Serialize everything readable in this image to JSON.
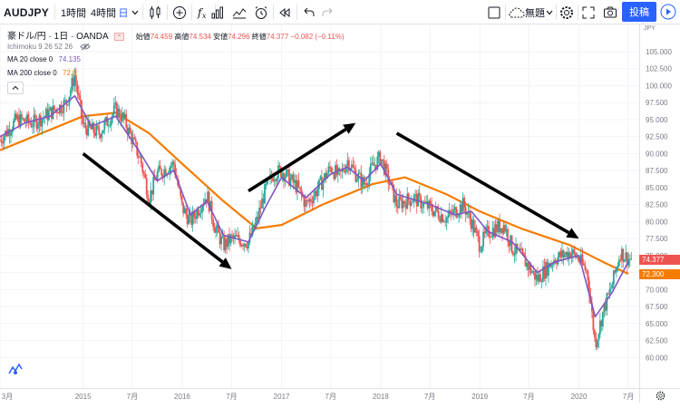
{
  "toolbar": {
    "symbol": "AUDJPY",
    "interval_1h": "1時間",
    "interval_4h": "4時間",
    "interval_current": "日",
    "icons": [
      "chart-style-icon",
      "compare-add-icon",
      "indicator-icon",
      "bar-chart-icon",
      "templates-icon",
      "alert-icon",
      "replay-icon",
      "undo-icon",
      "redo-icon",
      "layout-icon",
      "cloud-save-icon",
      "settings-icon",
      "fullscreen-icon",
      "camera-icon",
      "play-icon"
    ],
    "save_label": "無題",
    "publish_label": "投稿"
  },
  "legend": {
    "title": "豪ドル/円 · 1日 · OANDA",
    "ohlc": {
      "open_label": "始値",
      "open": "74.459",
      "high_label": "高値",
      "high": "74.534",
      "low_label": "安値",
      "low": "74.296",
      "close_label": "終値",
      "close": "74.377",
      "change": "−0.082 (−0.11%)"
    },
    "ichimoku": "Ichimoku 9 26 52 26",
    "ma20_label": "MA 20 close 0",
    "ma20_value": "74.135",
    "ma200_label": "MA 200 close 0",
    "ma200_value": "72.3"
  },
  "colors": {
    "up": "#26a69a",
    "down": "#ef5350",
    "ma20": "#7e57c2",
    "ma200": "#f57c00",
    "arrows": "#000000",
    "accent": "#2962ff",
    "grid": "#f0f3fa",
    "text": "#131722",
    "axis_text": "#787b86"
  },
  "axis_currency": "JPY",
  "chart_data": {
    "type": "candlestick",
    "symbol": "AUDJPY",
    "ylim": [
      55.5,
      109
    ],
    "x_ticks": [
      "3月",
      "2015",
      "7月",
      "2016",
      "7月",
      "2017",
      "7月",
      "2018",
      "7月",
      "2019",
      "7月",
      "2020",
      "7月"
    ],
    "y_ticks": [
      60,
      62.5,
      65,
      67.5,
      70,
      72.5,
      75,
      77.5,
      80,
      82.5,
      85,
      87.5,
      90,
      92.5,
      95,
      97.5,
      100,
      102.5,
      105
    ],
    "price_path": [
      {
        "date": "2014-03",
        "value": 92.0
      },
      {
        "date": "2014-05",
        "value": 95.0
      },
      {
        "date": "2014-07",
        "value": 94.5
      },
      {
        "date": "2014-09",
        "value": 96.0
      },
      {
        "date": "2014-11",
        "value": 97.5
      },
      {
        "date": "2014-12",
        "value": 101.5
      },
      {
        "date": "2015-01",
        "value": 94.0
      },
      {
        "date": "2015-03",
        "value": 93.0
      },
      {
        "date": "2015-05",
        "value": 96.5
      },
      {
        "date": "2015-06",
        "value": 95.0
      },
      {
        "date": "2015-08",
        "value": 89.0
      },
      {
        "date": "2015-09",
        "value": 83.5
      },
      {
        "date": "2015-10",
        "value": 87.0
      },
      {
        "date": "2015-12",
        "value": 88.5
      },
      {
        "date": "2016-01",
        "value": 82.0
      },
      {
        "date": "2016-02",
        "value": 80.0
      },
      {
        "date": "2016-04",
        "value": 84.0
      },
      {
        "date": "2016-05",
        "value": 79.0
      },
      {
        "date": "2016-06",
        "value": 76.5
      },
      {
        "date": "2016-07",
        "value": 77.5
      },
      {
        "date": "2016-09",
        "value": 77.0
      },
      {
        "date": "2016-10",
        "value": 80.0
      },
      {
        "date": "2016-11",
        "value": 84.5
      },
      {
        "date": "2016-12",
        "value": 87.0
      },
      {
        "date": "2017-01",
        "value": 87.5
      },
      {
        "date": "2017-03",
        "value": 85.0
      },
      {
        "date": "2017-04",
        "value": 82.5
      },
      {
        "date": "2017-05",
        "value": 84.0
      },
      {
        "date": "2017-07",
        "value": 88.0
      },
      {
        "date": "2017-08",
        "value": 86.5
      },
      {
        "date": "2017-09",
        "value": 89.0
      },
      {
        "date": "2017-10",
        "value": 87.0
      },
      {
        "date": "2017-11",
        "value": 85.5
      },
      {
        "date": "2017-12",
        "value": 88.0
      },
      {
        "date": "2018-01",
        "value": 89.5
      },
      {
        "date": "2018-03",
        "value": 82.5
      },
      {
        "date": "2018-05",
        "value": 83.5
      },
      {
        "date": "2018-07",
        "value": 82.0
      },
      {
        "date": "2018-09",
        "value": 80.5
      },
      {
        "date": "2018-11",
        "value": 82.5
      },
      {
        "date": "2018-12",
        "value": 80.0
      },
      {
        "date": "2019-01",
        "value": 76.5
      },
      {
        "date": "2019-02",
        "value": 78.5
      },
      {
        "date": "2019-04",
        "value": 79.5
      },
      {
        "date": "2019-05",
        "value": 76.0
      },
      {
        "date": "2019-06",
        "value": 75.0
      },
      {
        "date": "2019-08",
        "value": 71.5
      },
      {
        "date": "2019-09",
        "value": 73.0
      },
      {
        "date": "2019-10",
        "value": 74.5
      },
      {
        "date": "2019-12",
        "value": 75.5
      },
      {
        "date": "2020-01",
        "value": 74.5
      },
      {
        "date": "2020-02",
        "value": 72.5
      },
      {
        "date": "2020-03",
        "value": 62.0
      },
      {
        "date": "2020-04",
        "value": 67.0
      },
      {
        "date": "2020-05",
        "value": 70.5
      },
      {
        "date": "2020-06",
        "value": 75.5
      },
      {
        "date": "2020-07",
        "value": 74.5
      }
    ],
    "ma20_path": [
      {
        "date": "2014-03",
        "value": 92.5
      },
      {
        "date": "2014-06",
        "value": 94.5
      },
      {
        "date": "2014-09",
        "value": 95.5
      },
      {
        "date": "2014-12",
        "value": 98.5
      },
      {
        "date": "2015-02",
        "value": 94.0
      },
      {
        "date": "2015-05",
        "value": 95.5
      },
      {
        "date": "2015-08",
        "value": 90.0
      },
      {
        "date": "2015-10",
        "value": 86.0
      },
      {
        "date": "2015-12",
        "value": 87.5
      },
      {
        "date": "2016-02",
        "value": 81.0
      },
      {
        "date": "2016-04",
        "value": 83.0
      },
      {
        "date": "2016-06",
        "value": 78.0
      },
      {
        "date": "2016-09",
        "value": 77.0
      },
      {
        "date": "2016-11",
        "value": 82.0
      },
      {
        "date": "2017-01",
        "value": 86.5
      },
      {
        "date": "2017-04",
        "value": 83.5
      },
      {
        "date": "2017-07",
        "value": 87.0
      },
      {
        "date": "2017-09",
        "value": 88.0
      },
      {
        "date": "2017-11",
        "value": 86.0
      },
      {
        "date": "2018-01",
        "value": 88.5
      },
      {
        "date": "2018-03",
        "value": 84.0
      },
      {
        "date": "2018-07",
        "value": 82.5
      },
      {
        "date": "2018-10",
        "value": 81.0
      },
      {
        "date": "2018-12",
        "value": 81.5
      },
      {
        "date": "2019-02",
        "value": 78.5
      },
      {
        "date": "2019-05",
        "value": 77.0
      },
      {
        "date": "2019-08",
        "value": 72.5
      },
      {
        "date": "2019-10",
        "value": 74.0
      },
      {
        "date": "2020-01",
        "value": 75.0
      },
      {
        "date": "2020-03",
        "value": 66.0
      },
      {
        "date": "2020-05",
        "value": 69.5
      },
      {
        "date": "2020-07",
        "value": 74.1
      }
    ],
    "ma200_path": [
      {
        "date": "2014-03",
        "value": 90.5
      },
      {
        "date": "2014-09",
        "value": 93.5
      },
      {
        "date": "2015-01",
        "value": 95.5
      },
      {
        "date": "2015-05",
        "value": 96.0
      },
      {
        "date": "2015-09",
        "value": 93.0
      },
      {
        "date": "2016-01",
        "value": 88.5
      },
      {
        "date": "2016-06",
        "value": 83.0
      },
      {
        "date": "2016-10",
        "value": 79.0
      },
      {
        "date": "2017-01",
        "value": 79.5
      },
      {
        "date": "2017-06",
        "value": 82.5
      },
      {
        "date": "2017-12",
        "value": 85.5
      },
      {
        "date": "2018-04",
        "value": 86.5
      },
      {
        "date": "2018-09",
        "value": 84.0
      },
      {
        "date": "2019-01",
        "value": 81.5
      },
      {
        "date": "2019-06",
        "value": 79.0
      },
      {
        "date": "2019-12",
        "value": 76.5
      },
      {
        "date": "2020-04",
        "value": 74.0
      },
      {
        "date": "2020-07",
        "value": 72.3
      }
    ],
    "annotations": [
      {
        "type": "arrow",
        "from": {
          "date": "2015-01",
          "value": 90
        },
        "to": {
          "date": "2016-07",
          "value": 73
        }
      },
      {
        "type": "arrow",
        "from": {
          "date": "2016-09",
          "value": 84.5
        },
        "to": {
          "date": "2017-10",
          "value": 94.5
        }
      },
      {
        "type": "arrow",
        "from": {
          "date": "2018-03",
          "value": 93
        },
        "to": {
          "date": "2020-01",
          "value": 77.5
        }
      }
    ],
    "last_price": 74.377,
    "ma200_last": 72.3
  }
}
